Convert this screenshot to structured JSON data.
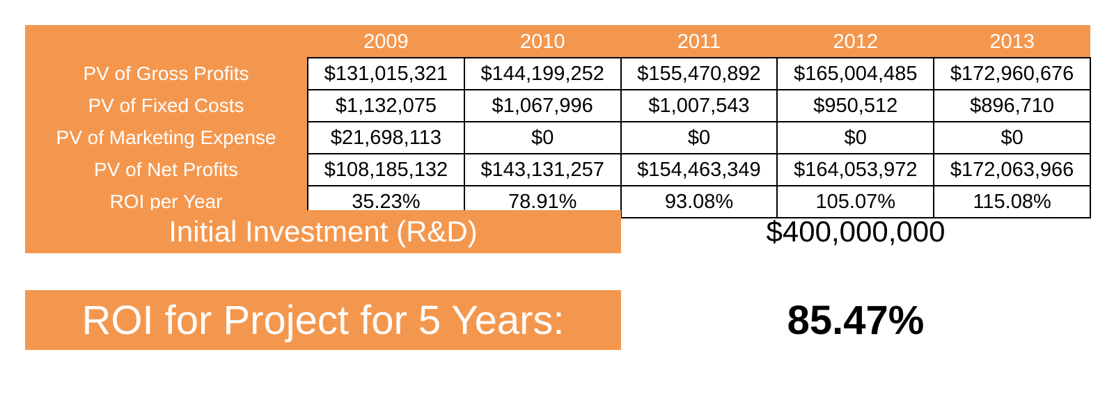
{
  "table": {
    "years": [
      "2009",
      "2010",
      "2011",
      "2012",
      "2013"
    ],
    "rows": [
      {
        "label": "PV of Gross Profits",
        "values": [
          "$131,015,321",
          "$144,199,252",
          "$155,470,892",
          "$165,004,485",
          "$172,960,676"
        ]
      },
      {
        "label": "PV of Fixed Costs",
        "values": [
          "$1,132,075",
          "$1,067,996",
          "$1,007,543",
          "$950,512",
          "$896,710"
        ]
      },
      {
        "label": "PV of Marketing Expense",
        "values": [
          "$21,698,113",
          "$0",
          "$0",
          "$0",
          "$0"
        ]
      },
      {
        "label": "PV of Net Profits",
        "values": [
          "$108,185,132",
          "$143,131,257",
          "$154,463,349",
          "$164,053,972",
          "$172,063,966"
        ]
      },
      {
        "label": "ROI per Year",
        "values": [
          "35.23%",
          "78.91%",
          "93.08%",
          "105.07%",
          "115.08%"
        ]
      }
    ]
  },
  "investment": {
    "label": "Initial Investment (R&D)",
    "value": "$400,000,000"
  },
  "project_roi": {
    "label": "ROI for Project for 5 Years:",
    "value": "85.47%"
  },
  "colors": {
    "accent": "#f4974e",
    "text_on_accent": "#ffffff",
    "text": "#000000"
  }
}
